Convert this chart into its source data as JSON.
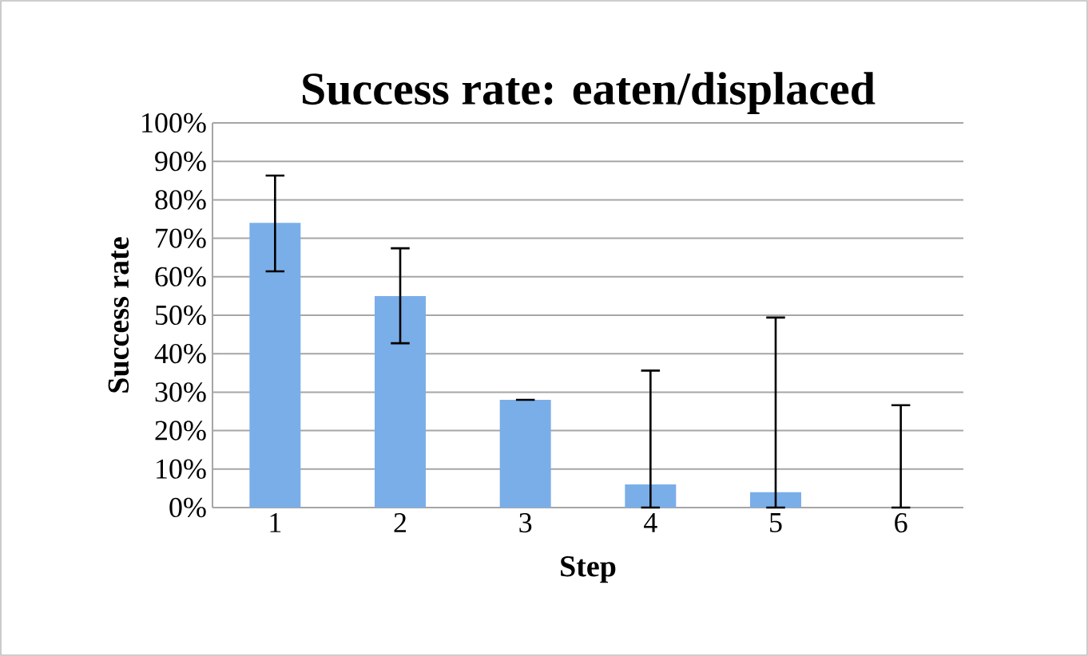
{
  "chart_data": {
    "type": "bar",
    "title": "Success rate: eaten/displaced",
    "xlabel": "Step",
    "ylabel": "Success rate",
    "categories": [
      "1",
      "2",
      "3",
      "4",
      "5",
      "6"
    ],
    "values": [
      74,
      55,
      28,
      6,
      4,
      0
    ],
    "errors": [
      [
        61.4,
        86.3
      ],
      [
        42.7,
        67.4
      ],
      [
        28,
        28
      ],
      [
        0,
        35.6
      ],
      [
        0,
        49.4
      ],
      [
        0,
        26.6
      ]
    ],
    "color": "#7aaee8",
    "ylim": [
      0,
      100
    ],
    "yticks": [
      {
        "value": 0,
        "label": "0%"
      },
      {
        "value": 10,
        "label": "10%"
      },
      {
        "value": 20,
        "label": "20%"
      },
      {
        "value": 30,
        "label": "30%"
      },
      {
        "value": 40,
        "label": "40%"
      },
      {
        "value": 50,
        "label": "50%"
      },
      {
        "value": 60,
        "label": "60%"
      },
      {
        "value": 70,
        "label": "70%"
      },
      {
        "value": 80,
        "label": "80%"
      },
      {
        "value": 90,
        "label": "90%"
      },
      {
        "value": 100,
        "label": "100%"
      }
    ],
    "grid": "y"
  }
}
